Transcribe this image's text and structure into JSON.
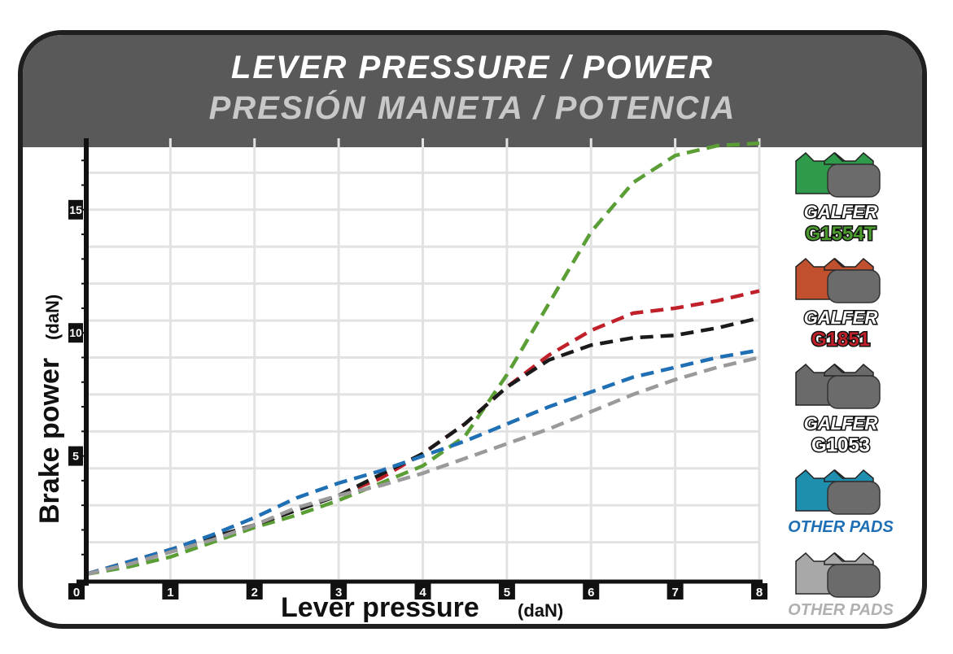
{
  "header": {
    "title_en": "LEVER PRESSURE / POWER",
    "title_es": "PRESIÓN MANETA / POTENCIA"
  },
  "chart_data": {
    "type": "line",
    "xlabel": "Lever pressure",
    "xlabel_unit": "(daN)",
    "ylabel": "Brake power",
    "ylabel_unit": "(daN)",
    "xlim": [
      0,
      8
    ],
    "ylim": [
      0,
      17.9
    ],
    "x_ticks": [
      "0",
      "1",
      "2",
      "3",
      "4",
      "5",
      "6",
      "7",
      "8"
    ],
    "y_ticks": [
      "5",
      "10",
      "15"
    ],
    "grid": true,
    "series": [
      {
        "name": "GALFER G1554T",
        "color": "#5a9e35",
        "points": [
          [
            0,
            0.2
          ],
          [
            0.5,
            0.5
          ],
          [
            1,
            0.9
          ],
          [
            1.5,
            1.5
          ],
          [
            2,
            2.1
          ],
          [
            2.5,
            2.6
          ],
          [
            3,
            3.2
          ],
          [
            3.5,
            3.9
          ],
          [
            4,
            4.6
          ],
          [
            4.5,
            5.8
          ],
          [
            5,
            8.3
          ],
          [
            5.5,
            11.2
          ],
          [
            6,
            14.1
          ],
          [
            6.5,
            16.1
          ],
          [
            7,
            17.2
          ],
          [
            7.5,
            17.6
          ],
          [
            8,
            17.7
          ]
        ]
      },
      {
        "name": "GALFER G1851",
        "color": "#c0202a",
        "points": [
          [
            0,
            0.2
          ],
          [
            0.5,
            0.7
          ],
          [
            1,
            1.2
          ],
          [
            1.5,
            1.7
          ],
          [
            2,
            2.2
          ],
          [
            2.5,
            2.8
          ],
          [
            3,
            3.4
          ],
          [
            3.5,
            4.1
          ],
          [
            4,
            5.1
          ],
          [
            4.5,
            6.3
          ],
          [
            5,
            7.8
          ],
          [
            5.5,
            9.1
          ],
          [
            6,
            10.1
          ],
          [
            6.5,
            10.8
          ],
          [
            7,
            11.0
          ],
          [
            7.5,
            11.3
          ],
          [
            8,
            11.7
          ]
        ]
      },
      {
        "name": "GALFER G1053",
        "color": "#1a1a1a",
        "points": [
          [
            0,
            0.2
          ],
          [
            1,
            1.2
          ],
          [
            2,
            2.2
          ],
          [
            3,
            3.4
          ],
          [
            4,
            5.1
          ],
          [
            4.5,
            6.3
          ],
          [
            5,
            7.8
          ],
          [
            5.5,
            8.9
          ],
          [
            6,
            9.5
          ],
          [
            6.5,
            9.8
          ],
          [
            7,
            9.9
          ],
          [
            7.5,
            10.2
          ],
          [
            8,
            10.6
          ]
        ]
      },
      {
        "name": "OTHER PADS (blue)",
        "color": "#1f6fb5",
        "points": [
          [
            0,
            0.2
          ],
          [
            0.5,
            0.7
          ],
          [
            1,
            1.2
          ],
          [
            1.5,
            1.8
          ],
          [
            2,
            2.5
          ],
          [
            2.5,
            3.3
          ],
          [
            3,
            3.9
          ],
          [
            3.5,
            4.4
          ],
          [
            4,
            5.0
          ],
          [
            4.5,
            5.6
          ],
          [
            5,
            6.3
          ],
          [
            5.5,
            7.0
          ],
          [
            6,
            7.6
          ],
          [
            6.5,
            8.2
          ],
          [
            7,
            8.6
          ],
          [
            7.5,
            9.0
          ],
          [
            8,
            9.3
          ]
        ]
      },
      {
        "name": "OTHER PADS (grey)",
        "color": "#9a9a9a",
        "points": [
          [
            0,
            0.2
          ],
          [
            0.5,
            0.6
          ],
          [
            1,
            1.1
          ],
          [
            1.5,
            1.6
          ],
          [
            2,
            2.2
          ],
          [
            2.5,
            2.9
          ],
          [
            3,
            3.4
          ],
          [
            3.5,
            3.8
          ],
          [
            4,
            4.3
          ],
          [
            4.5,
            4.9
          ],
          [
            5,
            5.5
          ],
          [
            5.5,
            6.1
          ],
          [
            6,
            6.8
          ],
          [
            6.5,
            7.5
          ],
          [
            7,
            8.1
          ],
          [
            7.5,
            8.6
          ],
          [
            8,
            9.0
          ]
        ]
      }
    ]
  },
  "legend": [
    {
      "name": "G1554T",
      "brand": "GALFER",
      "code": "G1554T",
      "pad_color": "#2e9a4a",
      "code_color": "#4a9a2e"
    },
    {
      "name": "G1851",
      "brand": "GALFER",
      "code": "G1851",
      "pad_color": "#c0502e",
      "code_color": "#c0202a"
    },
    {
      "name": "G1053",
      "brand": "GALFER",
      "code": "G1053",
      "pad_color": "#6a6a6a",
      "code_color": "#ffffff"
    },
    {
      "name": "other-blue",
      "label": "OTHER PADS",
      "pad_color": "#1f8fb0",
      "label_color": "#1f6fb5"
    },
    {
      "name": "other-grey",
      "label": "OTHER PADS",
      "pad_color": "#a8a8a8",
      "label_color": "#b0b0b0"
    }
  ]
}
